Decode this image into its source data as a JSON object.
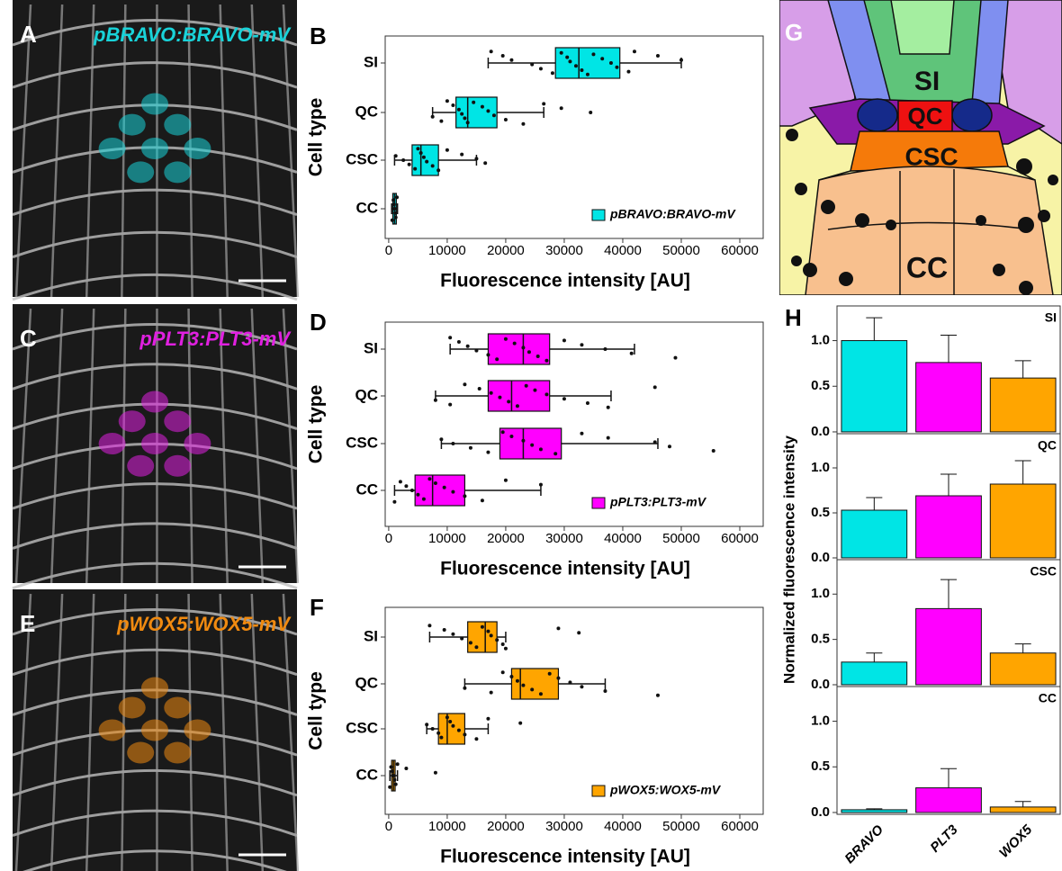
{
  "images": [
    {
      "label": "A",
      "construct": "pBRAVO:BRAVO-mV",
      "color": "#19d3d9"
    },
    {
      "label": "C",
      "construct": "pPLT3:PLT3-mV",
      "color": "#e020e0"
    },
    {
      "label": "E",
      "construct": "pWOX5:WOX5-mV",
      "color": "#f08a10"
    }
  ],
  "diagram": {
    "label": "G",
    "regions": [
      "SI",
      "QC",
      "CSC",
      "CC"
    ]
  },
  "chart_data": [
    {
      "type": "box",
      "label": "B",
      "categories": [
        "SI",
        "QC",
        "CSC",
        "CC"
      ],
      "color": "#00e5e5",
      "legend": "pBRAVO:BRAVO-mV",
      "legend_loc": "lower right",
      "xlabel": "Fluorescence intensity [AU]",
      "ylabel": "Cell type",
      "xlim": [
        -600,
        64000
      ],
      "xticks": [
        0,
        10000,
        20000,
        30000,
        40000,
        50000,
        60000
      ],
      "boxes": [
        {
          "min": 17000,
          "q1": 28500,
          "median": 32500,
          "q3": 39500,
          "max": 50000,
          "points": [
            17500,
            19500,
            21000,
            24500,
            26000,
            28000,
            29500,
            30500,
            31000,
            32000,
            33000,
            34000,
            35000,
            36500,
            38000,
            39000,
            41000,
            42000,
            46000,
            50000
          ]
        },
        {
          "min": 7500,
          "q1": 11500,
          "median": 13500,
          "q3": 18500,
          "max": 26500,
          "points": [
            7500,
            9000,
            10000,
            11000,
            12000,
            12500,
            13000,
            13500,
            14500,
            16000,
            17000,
            18000,
            20000,
            23000,
            26500,
            29500,
            34500
          ]
        },
        {
          "min": 1000,
          "q1": 4000,
          "median": 5500,
          "q3": 8500,
          "max": 15000,
          "points": [
            1200,
            2500,
            3500,
            4500,
            5000,
            5500,
            6000,
            6500,
            7500,
            8500,
            10000,
            12500,
            15000,
            16500
          ]
        },
        {
          "min": 500,
          "q1": 700,
          "median": 1000,
          "q3": 1300,
          "max": 1500,
          "points": [
            600,
            800,
            900,
            1000,
            1100,
            1200,
            1400
          ]
        }
      ]
    },
    {
      "type": "box",
      "label": "D",
      "categories": [
        "SI",
        "QC",
        "CSC",
        "CC"
      ],
      "color": "#ff00ff",
      "legend": "pPLT3:PLT3-mV",
      "legend_loc": "lower right",
      "xlabel": "Fluorescence intensity [AU]",
      "ylabel": "Cell type",
      "xlim": [
        -600,
        64000
      ],
      "xticks": [
        0,
        10000,
        20000,
        30000,
        40000,
        50000,
        60000
      ],
      "boxes": [
        {
          "min": 10500,
          "q1": 17000,
          "median": 23000,
          "q3": 27500,
          "max": 42000,
          "points": [
            10500,
            12000,
            13500,
            15000,
            17000,
            18500,
            20000,
            21500,
            23000,
            24000,
            25500,
            27000,
            30000,
            33000,
            37000,
            41500,
            49000
          ]
        },
        {
          "min": 8000,
          "q1": 17000,
          "median": 21000,
          "q3": 27500,
          "max": 38000,
          "points": [
            8000,
            10500,
            13000,
            15500,
            17500,
            19000,
            20500,
            22000,
            23500,
            25000,
            27000,
            30000,
            34000,
            37500,
            45500
          ]
        },
        {
          "min": 9000,
          "q1": 19000,
          "median": 23000,
          "q3": 29500,
          "max": 46000,
          "points": [
            9000,
            11000,
            14000,
            17000,
            19500,
            21000,
            23000,
            24500,
            26000,
            28500,
            33000,
            37500,
            45500,
            48000,
            55500
          ]
        },
        {
          "min": 1000,
          "q1": 4500,
          "median": 7500,
          "q3": 13000,
          "max": 26000,
          "points": [
            1000,
            2000,
            3000,
            4000,
            5000,
            6000,
            7000,
            8000,
            9500,
            11000,
            13000,
            16000,
            20000,
            26000
          ]
        }
      ]
    },
    {
      "type": "box",
      "label": "F",
      "categories": [
        "SI",
        "QC",
        "CSC",
        "CC"
      ],
      "color": "#ffa500",
      "legend": "pWOX5:WOX5-mV",
      "legend_loc": "lower right",
      "xlabel": "Fluorescence intensity [AU]",
      "ylabel": "Cell type",
      "xlim": [
        -600,
        64000
      ],
      "xticks": [
        0,
        10000,
        20000,
        30000,
        40000,
        50000,
        60000
      ],
      "boxes": [
        {
          "min": 7000,
          "q1": 13500,
          "median": 16500,
          "q3": 18500,
          "max": 20000,
          "points": [
            7000,
            9500,
            11000,
            12500,
            14000,
            15000,
            16000,
            17000,
            17500,
            18500,
            19500,
            20000,
            29000,
            32500
          ]
        },
        {
          "min": 13000,
          "q1": 21000,
          "median": 22500,
          "q3": 29000,
          "max": 37000,
          "points": [
            13000,
            17500,
            19500,
            21000,
            22000,
            23000,
            24500,
            26000,
            27500,
            29000,
            31000,
            33000,
            37000,
            46000
          ]
        },
        {
          "min": 6500,
          "q1": 8500,
          "median": 10000,
          "q3": 13000,
          "max": 17000,
          "points": [
            6500,
            7500,
            8500,
            9000,
            10000,
            10500,
            11000,
            12000,
            13000,
            15000,
            17000,
            22500
          ]
        },
        {
          "min": 200,
          "q1": 500,
          "median": 800,
          "q3": 1100,
          "max": 1500,
          "points": [
            200,
            400,
            600,
            800,
            1000,
            1200,
            1500,
            3000,
            8000
          ]
        }
      ]
    },
    {
      "type": "bar-facets",
      "label": "H",
      "ylabel": "Normalized fluorescence intensity",
      "categories": [
        "BRAVO",
        "PLT3",
        "WOX5"
      ],
      "colors": [
        "#00e5e5",
        "#ff00ff",
        "#ffa500"
      ],
      "ylim": [
        -0.02,
        1.38
      ],
      "yticks": [
        {
          "value": 0,
          "label": "0.0"
        },
        {
          "value": 0.5,
          "label": "0.5"
        },
        {
          "value": 1,
          "label": "1.0"
        }
      ],
      "panels": [
        {
          "title": "SI",
          "values": [
            1.0,
            0.76,
            0.59
          ],
          "errors": [
            0.25,
            0.3,
            0.19
          ]
        },
        {
          "title": "QC",
          "values": [
            0.53,
            0.69,
            0.82
          ],
          "errors": [
            0.14,
            0.24,
            0.26
          ]
        },
        {
          "title": "CSC",
          "values": [
            0.25,
            0.84,
            0.35
          ],
          "errors": [
            0.1,
            0.32,
            0.1
          ]
        },
        {
          "title": "CC",
          "values": [
            0.03,
            0.27,
            0.06
          ],
          "errors": [
            0.01,
            0.21,
            0.06
          ]
        }
      ]
    }
  ]
}
